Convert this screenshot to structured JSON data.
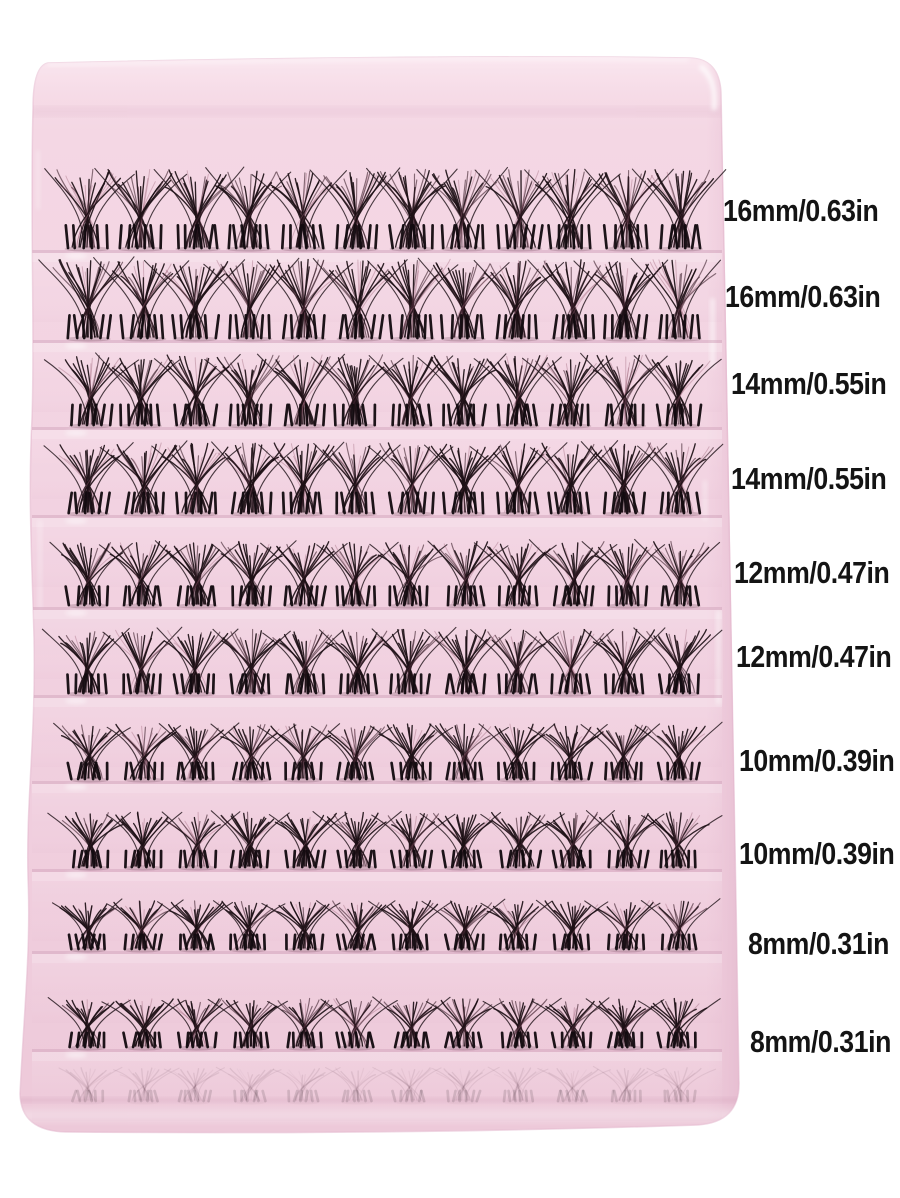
{
  "scene": {
    "type": "product-photo",
    "subject": "Pink tray of individual cluster false eyelashes on white background",
    "background_color": "#ffffff"
  },
  "tray": {
    "color": "#f1d1e0",
    "rows_count": 10,
    "clusters_per_row": 12
  },
  "rows": [
    {
      "size_label": "16mm/0.63in",
      "size_mm": 16
    },
    {
      "size_label": "16mm/0.63in",
      "size_mm": 16
    },
    {
      "size_label": "14mm/0.55in",
      "size_mm": 14
    },
    {
      "size_label": "14mm/0.55in",
      "size_mm": 14
    },
    {
      "size_label": "12mm/0.47in",
      "size_mm": 12
    },
    {
      "size_label": "12mm/0.47in",
      "size_mm": 12
    },
    {
      "size_label": "10mm/0.39in",
      "size_mm": 10
    },
    {
      "size_label": "10mm/0.39in",
      "size_mm": 10
    },
    {
      "size_label": "8mm/0.31in",
      "size_mm": 8
    },
    {
      "size_label": "8mm/0.31in",
      "size_mm": 8
    }
  ],
  "colors": {
    "lash": "#1d1016",
    "lash_sheen": "#9a6177",
    "label_text": "#141414",
    "tray_highlight": "#ffffff",
    "tray_shadow": "#d8abc3"
  }
}
